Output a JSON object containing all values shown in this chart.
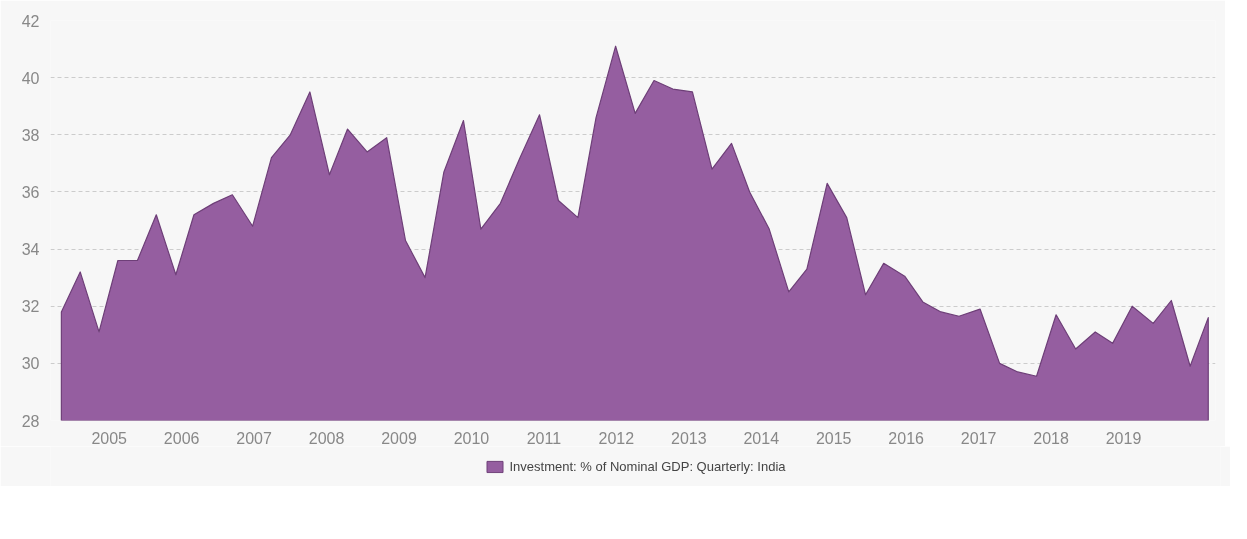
{
  "chart_data": {
    "type": "area",
    "x": [
      2004.34,
      2004.6,
      2004.86,
      2005.12,
      2005.39,
      2005.65,
      2005.92,
      2006.17,
      2006.44,
      2006.7,
      2006.98,
      2007.24,
      2007.5,
      2007.77,
      2008.04,
      2008.29,
      2008.56,
      2008.83,
      2009.09,
      2009.36,
      2009.62,
      2009.89,
      2010.13,
      2010.4,
      2010.67,
      2010.94,
      2011.2,
      2011.47,
      2011.72,
      2011.99,
      2012.26,
      2012.52,
      2012.78,
      2013.05,
      2013.32,
      2013.59,
      2013.84,
      2014.11,
      2014.38,
      2014.63,
      2014.91,
      2015.18,
      2015.44,
      2015.69,
      2015.98,
      2016.23,
      2016.48,
      2016.73,
      2017.02,
      2017.29,
      2017.54,
      2017.8,
      2018.07,
      2018.34,
      2018.61,
      2018.85,
      2019.12,
      2019.41,
      2019.66,
      2019.92,
      2020.17
    ],
    "series": [
      {
        "name": "Investment: % of Nominal GDP: Quarterly: India",
        "color": "#955ea0",
        "values": [
          31.8,
          33.2,
          31.1,
          33.6,
          33.6,
          35.2,
          33.1,
          35.2,
          35.6,
          35.9,
          34.8,
          37.2,
          38.0,
          39.5,
          36.6,
          38.2,
          37.4,
          37.9,
          34.3,
          33.0,
          36.7,
          38.5,
          34.7,
          35.6,
          37.2,
          38.7,
          35.7,
          35.1,
          38.6,
          41.1,
          38.75,
          39.9,
          39.6,
          39.5,
          36.8,
          37.7,
          36.0,
          34.7,
          32.5,
          33.3,
          36.3,
          35.1,
          32.4,
          33.5,
          33.05,
          32.15,
          31.8,
          31.65,
          31.9,
          30.0,
          29.7,
          29.55,
          31.7,
          30.5,
          31.1,
          30.7,
          32.0,
          31.4,
          32.2,
          29.9,
          31.6
        ]
      }
    ],
    "xlim": [
      2004.19,
      2020.27
    ],
    "xticks": [
      2005,
      2006,
      2007,
      2008,
      2009,
      2010,
      2011,
      2012,
      2013,
      2014,
      2015,
      2016,
      2017,
      2018,
      2019
    ],
    "ylim": [
      28,
      42
    ],
    "yticks": [
      28,
      30,
      32,
      34,
      36,
      38,
      40,
      42
    ],
    "grid": "y",
    "legend": "bottom"
  }
}
